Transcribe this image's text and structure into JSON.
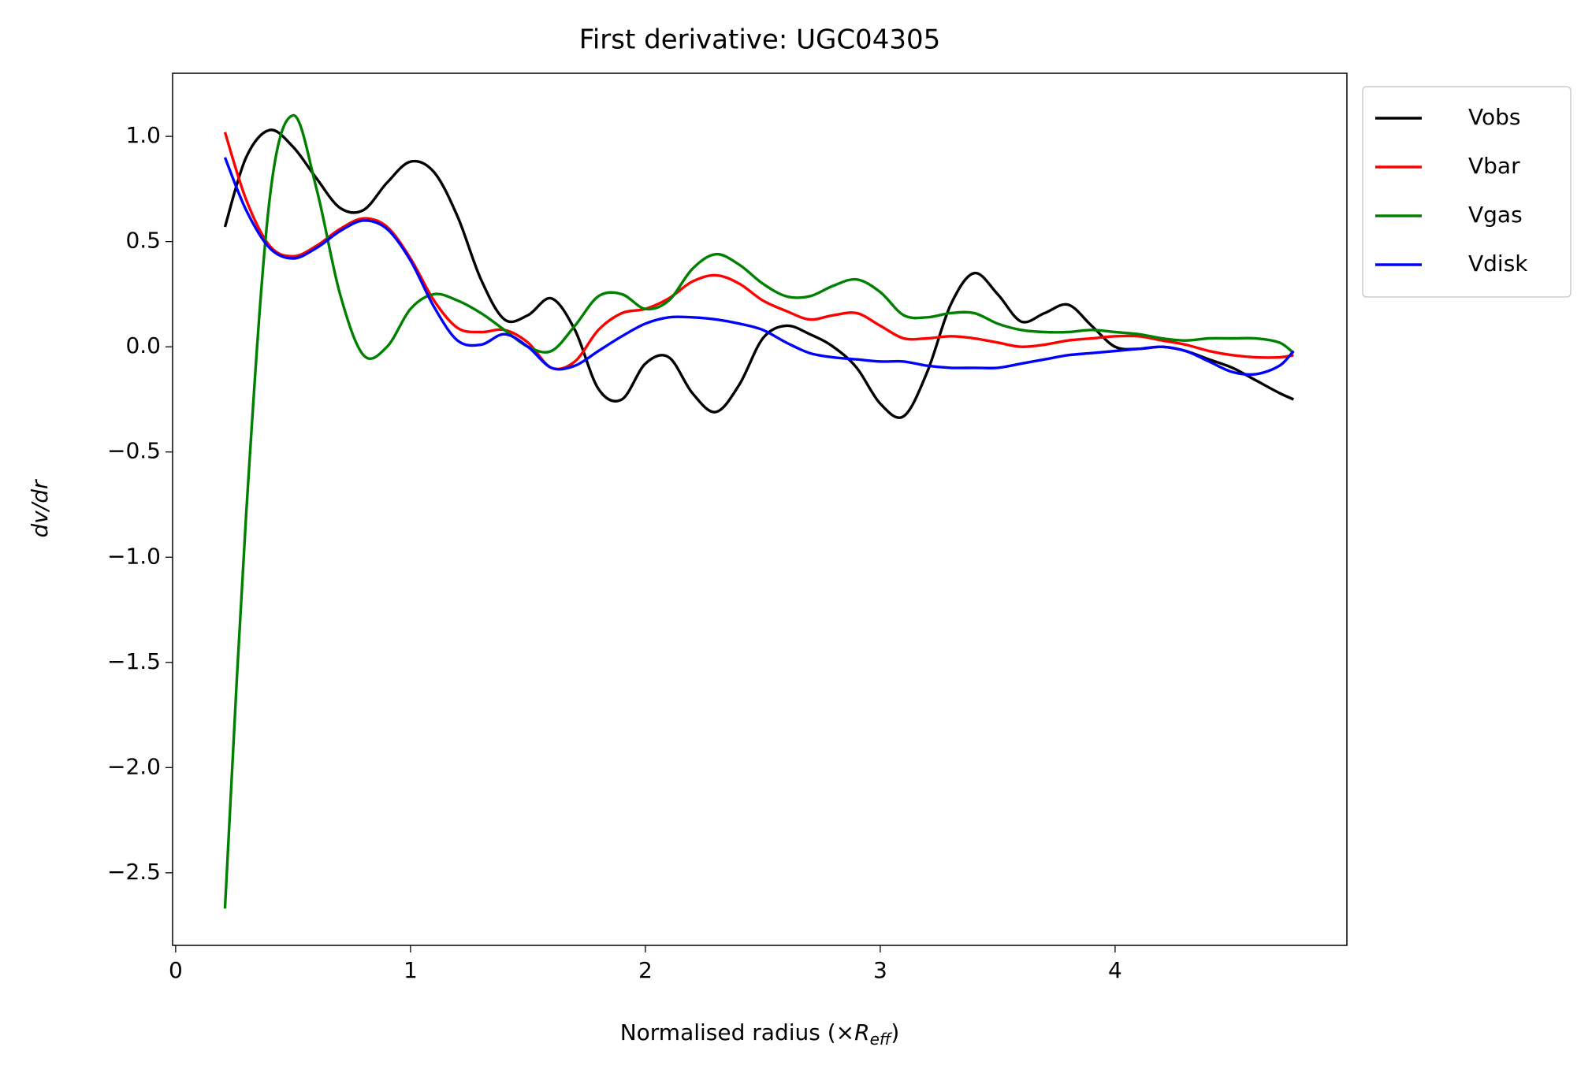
{
  "chart_data": {
    "type": "line",
    "title": "First derivative: UGC04305",
    "xlabel": {
      "prefix": "Normalised radius (×",
      "symbol": "R",
      "subscript": "eff",
      "suffix": ")"
    },
    "ylabel": "dv/dr",
    "xlim": [
      -0.013,
      4.987
    ],
    "ylim": [
      -2.845,
      1.3
    ],
    "xticks": [
      0,
      1,
      2,
      3,
      4
    ],
    "yticks": [
      {
        "value": -2.5,
        "label": "−2.5"
      },
      {
        "value": -2.0,
        "label": "−2.0"
      },
      {
        "value": -1.5,
        "label": "−1.5"
      },
      {
        "value": -1.0,
        "label": "−1.0"
      },
      {
        "value": -0.5,
        "label": "−0.5"
      },
      {
        "value": 0.0,
        "label": "0.0"
      },
      0.5,
      {
        "value": 1.0,
        "label": "1.0"
      }
    ],
    "legend": "outside-upper-right",
    "x": [
      0.21,
      0.3,
      0.4,
      0.5,
      0.6,
      0.7,
      0.8,
      0.9,
      1.0,
      1.1,
      1.2,
      1.3,
      1.4,
      1.5,
      1.6,
      1.7,
      1.8,
      1.9,
      2.0,
      2.1,
      2.2,
      2.3,
      2.4,
      2.5,
      2.6,
      2.7,
      2.8,
      2.9,
      3.0,
      3.1,
      3.2,
      3.3,
      3.4,
      3.5,
      3.6,
      3.7,
      3.8,
      3.9,
      4.0,
      4.1,
      4.2,
      4.3,
      4.4,
      4.5,
      4.6,
      4.7,
      4.76
    ],
    "series": [
      {
        "name": "Vobs",
        "color": "#000000",
        "values": [
          0.57,
          0.9,
          1.03,
          0.95,
          0.8,
          0.66,
          0.65,
          0.78,
          0.88,
          0.83,
          0.62,
          0.32,
          0.13,
          0.15,
          0.23,
          0.08,
          -0.2,
          -0.25,
          -0.08,
          -0.05,
          -0.22,
          -0.31,
          -0.18,
          0.04,
          0.1,
          0.06,
          0.0,
          -0.1,
          -0.27,
          -0.33,
          -0.12,
          0.2,
          0.35,
          0.25,
          0.12,
          0.16,
          0.2,
          0.1,
          0.0,
          -0.01,
          0.0,
          -0.02,
          -0.06,
          -0.1,
          -0.16,
          -0.22,
          -0.25
        ]
      },
      {
        "name": "Vbar",
        "color": "#ff0000",
        "values": [
          1.02,
          0.7,
          0.48,
          0.43,
          0.48,
          0.56,
          0.61,
          0.57,
          0.42,
          0.22,
          0.09,
          0.07,
          0.08,
          0.02,
          -0.1,
          -0.07,
          0.08,
          0.16,
          0.18,
          0.23,
          0.31,
          0.34,
          0.3,
          0.22,
          0.17,
          0.13,
          0.15,
          0.16,
          0.1,
          0.04,
          0.04,
          0.05,
          0.04,
          0.02,
          0.0,
          0.01,
          0.03,
          0.04,
          0.05,
          0.05,
          0.03,
          0.01,
          -0.02,
          -0.04,
          -0.05,
          -0.05,
          -0.04
        ]
      },
      {
        "name": "Vgas",
        "color": "#008000",
        "values": [
          -2.67,
          -0.8,
          0.7,
          1.1,
          0.75,
          0.25,
          -0.04,
          0.0,
          0.18,
          0.25,
          0.22,
          0.16,
          0.08,
          0.0,
          -0.02,
          0.1,
          0.24,
          0.25,
          0.18,
          0.22,
          0.37,
          0.44,
          0.39,
          0.3,
          0.24,
          0.24,
          0.29,
          0.32,
          0.26,
          0.15,
          0.14,
          0.16,
          0.16,
          0.11,
          0.08,
          0.07,
          0.07,
          0.08,
          0.07,
          0.06,
          0.04,
          0.03,
          0.04,
          0.04,
          0.04,
          0.02,
          -0.03
        ]
      },
      {
        "name": "Vdisk",
        "color": "#0000ff",
        "values": [
          0.9,
          0.65,
          0.47,
          0.42,
          0.47,
          0.55,
          0.6,
          0.56,
          0.41,
          0.19,
          0.03,
          0.01,
          0.06,
          0.0,
          -0.1,
          -0.09,
          -0.02,
          0.05,
          0.11,
          0.14,
          0.14,
          0.13,
          0.11,
          0.08,
          0.02,
          -0.03,
          -0.05,
          -0.06,
          -0.07,
          -0.07,
          -0.09,
          -0.1,
          -0.1,
          -0.1,
          -0.08,
          -0.06,
          -0.04,
          -0.03,
          -0.02,
          -0.01,
          0.0,
          -0.02,
          -0.07,
          -0.12,
          -0.13,
          -0.09,
          -0.02
        ]
      }
    ]
  }
}
